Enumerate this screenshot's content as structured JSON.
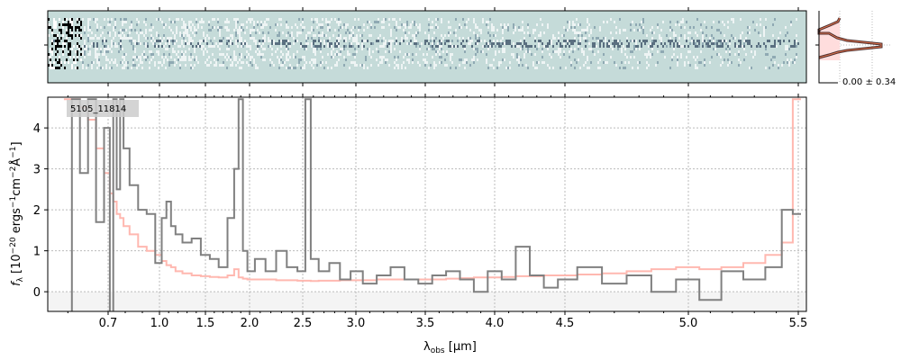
{
  "chart_data": {
    "type": "line",
    "object_label": "5105_11814",
    "xlabel": "λobs [μm]",
    "ylabel": "fλ [10^-20 ergs^-1 cm^-2 Å^-1]",
    "ylim": [
      -0.48,
      4.75
    ],
    "grid": true,
    "x_ticks": [
      "0.7",
      "1.0",
      "1.5",
      "2.0",
      "2.5",
      "3.0",
      "3.5",
      "4.0",
      "4.5",
      "5.0",
      "5.5"
    ],
    "y_ticks": [
      "0",
      "1",
      "2",
      "3",
      "4"
    ],
    "histogram_label": "0.00 ± 0.34",
    "x": [
      0.6,
      0.62,
      0.64,
      0.66,
      0.68,
      0.7,
      0.72,
      0.74,
      0.76,
      0.78,
      0.8,
      0.85,
      0.9,
      0.95,
      1.0,
      1.05,
      1.1,
      1.15,
      1.2,
      1.3,
      1.4,
      1.5,
      1.6,
      1.7,
      1.8,
      1.85,
      1.9,
      1.95,
      2.0,
      2.1,
      2.2,
      2.3,
      2.4,
      2.5,
      2.55,
      2.6,
      2.7,
      2.8,
      2.9,
      3.0,
      3.1,
      3.2,
      3.3,
      3.4,
      3.5,
      3.6,
      3.7,
      3.8,
      3.9,
      4.0,
      4.1,
      4.2,
      4.3,
      4.4,
      4.5,
      4.6,
      4.7,
      4.8,
      4.9,
      5.0,
      5.1,
      5.2,
      5.3,
      5.4,
      5.45,
      5.5
    ],
    "series": [
      {
        "name": "flux",
        "color": "#808080",
        "values": [
          -0.5,
          4.7,
          2.9,
          4.7,
          1.7,
          4.0,
          -0.5,
          4.7,
          2.5,
          4.7,
          3.5,
          2.6,
          2.0,
          1.9,
          0.7,
          1.8,
          2.2,
          1.6,
          1.4,
          1.2,
          1.3,
          0.9,
          0.8,
          0.6,
          1.8,
          3.0,
          4.7,
          1.0,
          0.5,
          0.8,
          0.5,
          1.0,
          0.6,
          0.5,
          4.7,
          0.8,
          0.5,
          0.7,
          0.3,
          0.5,
          0.2,
          0.4,
          0.6,
          0.3,
          0.2,
          0.4,
          0.5,
          0.3,
          0.0,
          0.5,
          0.3,
          1.1,
          0.4,
          0.1,
          0.3,
          0.6,
          0.2,
          0.4,
          0.0,
          0.3,
          -0.2,
          0.5,
          0.3,
          0.6,
          2.0,
          1.9
        ]
      },
      {
        "name": "error",
        "color": "#ffb8b0",
        "values": [
          4.7,
          4.7,
          4.5,
          4.2,
          3.5,
          2.9,
          2.4,
          2.2,
          1.9,
          1.8,
          1.6,
          1.4,
          1.1,
          1.0,
          0.9,
          0.75,
          0.65,
          0.6,
          0.5,
          0.45,
          0.4,
          0.38,
          0.36,
          0.35,
          0.4,
          0.55,
          0.35,
          0.32,
          0.3,
          0.3,
          0.3,
          0.28,
          0.28,
          0.27,
          0.27,
          0.26,
          0.27,
          0.27,
          0.28,
          0.28,
          0.28,
          0.3,
          0.3,
          0.3,
          0.3,
          0.3,
          0.32,
          0.33,
          0.35,
          0.35,
          0.36,
          0.38,
          0.38,
          0.4,
          0.4,
          0.42,
          0.45,
          0.5,
          0.55,
          0.6,
          0.55,
          0.6,
          0.7,
          0.9,
          1.2,
          4.7
        ]
      }
    ]
  }
}
